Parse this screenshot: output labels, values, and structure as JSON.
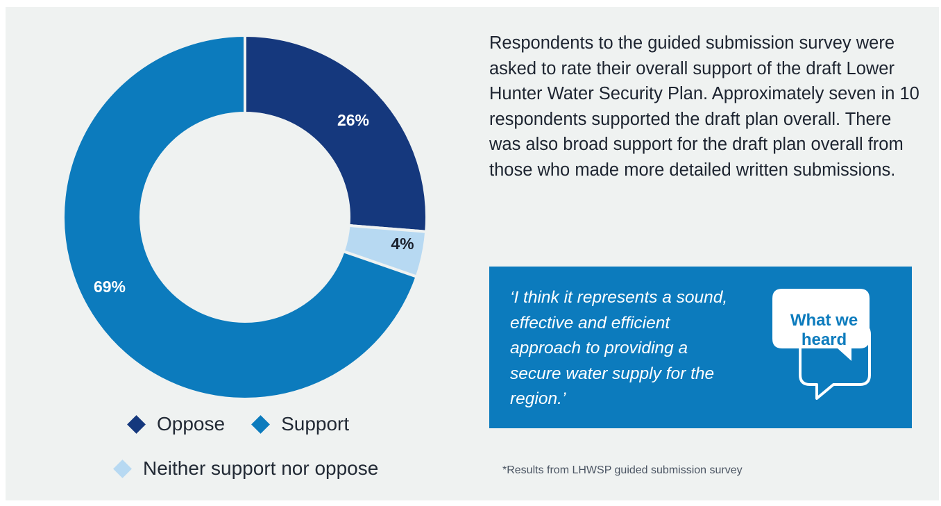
{
  "chart_data": {
    "type": "pie",
    "style": "donut",
    "series": [
      {
        "name": "Oppose",
        "value": 26,
        "label": "26%",
        "color": "#15387d"
      },
      {
        "name": "Neither support nor oppose",
        "value": 4,
        "label": "4%",
        "color": "#b7d9f2"
      },
      {
        "name": "Support",
        "value": 69,
        "label": "69%",
        "color": "#0c7bbd"
      }
    ],
    "legend": [
      "Oppose",
      "Support",
      "Neither support nor oppose"
    ]
  },
  "description": "Respondents to the guided submission survey were asked to rate their overall support of the draft Lower Hunter Water Security Plan. Approximately seven in 10 respondents supported the draft plan overall. There was also broad support for the draft plan overall from those who made more detailed written submissions.",
  "quote": {
    "text": "‘I think it represents a sound, effective and efficient approach to providing a secure water supply for the region.’",
    "badge": "What we heard",
    "icon": "speech-bubbles-icon"
  },
  "footnote": "*Results from LHWSP guided submission survey",
  "colors": {
    "background": "#eff2f1",
    "oppose": "#15387d",
    "support": "#0c7bbd",
    "neither": "#b7d9f2",
    "quote_box": "#0c7bbd"
  }
}
